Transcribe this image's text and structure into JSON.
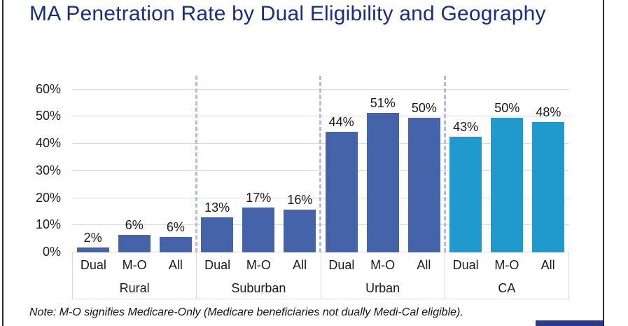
{
  "page": {
    "title": "MA Penetration Rate by Dual Eligibility and Geography",
    "note": "Note: M-O signifies Medicare-Only (Medicare beneficiaries not dually Medi-Cal eligible)."
  },
  "colors": {
    "title": "#1B2D7E",
    "bar_default": "#4563A8",
    "bar_ca": "#2099CC",
    "gridline": "#D9D9D9",
    "group_separator": "#B6B9E0",
    "footer_accent": "#2B3990",
    "page_edge": "#2B2B2B"
  },
  "chart_data": {
    "type": "bar",
    "title": "MA Penetration Rate by Dual Eligibility and Geography",
    "xlabel": "",
    "ylabel": "",
    "ylim": [
      0,
      60
    ],
    "y_tick_labels": [
      "0%",
      "10%",
      "20%",
      "30%",
      "40%",
      "50%",
      "60%"
    ],
    "grid": "horizontal gridlines on",
    "legend": "none",
    "group_separators": "dashed vertical lines between geography groups",
    "categories": [
      "Dual",
      "M-O",
      "All"
    ],
    "groups": [
      {
        "name": "Rural",
        "color": "#4563A8",
        "values": [
          2,
          6,
          6
        ],
        "labels": [
          "2%",
          "6%",
          "6%"
        ],
        "bar_heights_pct": [
          1.9,
          6.4,
          5.6
        ]
      },
      {
        "name": "Suburban",
        "color": "#4563A8",
        "values": [
          13,
          17,
          16
        ],
        "labels": [
          "13%",
          "17%",
          "16%"
        ],
        "bar_heights_pct": [
          13.0,
          16.6,
          15.8
        ]
      },
      {
        "name": "Urban",
        "color": "#4563A8",
        "values": [
          44,
          51,
          50
        ],
        "labels": [
          "44%",
          "51%",
          "50%"
        ],
        "bar_heights_pct": [
          44.3,
          51.3,
          49.6
        ]
      },
      {
        "name": "CA",
        "color": "#2099CC",
        "values": [
          43,
          50,
          48
        ],
        "labels": [
          "43%",
          "50%",
          "48%"
        ],
        "bar_heights_pct": [
          42.7,
          49.6,
          48.1
        ]
      }
    ]
  }
}
